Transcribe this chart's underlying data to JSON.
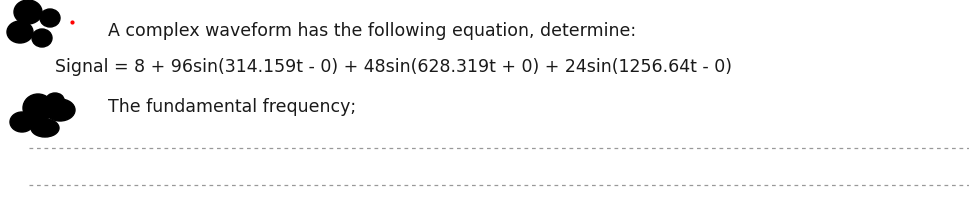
{
  "bg_color": "#ffffff",
  "line1_text": "A complex waveform has the following equation, determine:",
  "line2_text": "Signal = 8 + 96sin(314.159t - 0) + 48sin(628.319t + 0) + 24sin(1256.64t - 0)",
  "line3_text": "The fundamental frequency;",
  "text_color": "#1a1a1a",
  "dash_color": "#999999",
  "font_size": 12.5,
  "fig_width": 9.69,
  "fig_height": 1.99,
  "dpi": 100
}
